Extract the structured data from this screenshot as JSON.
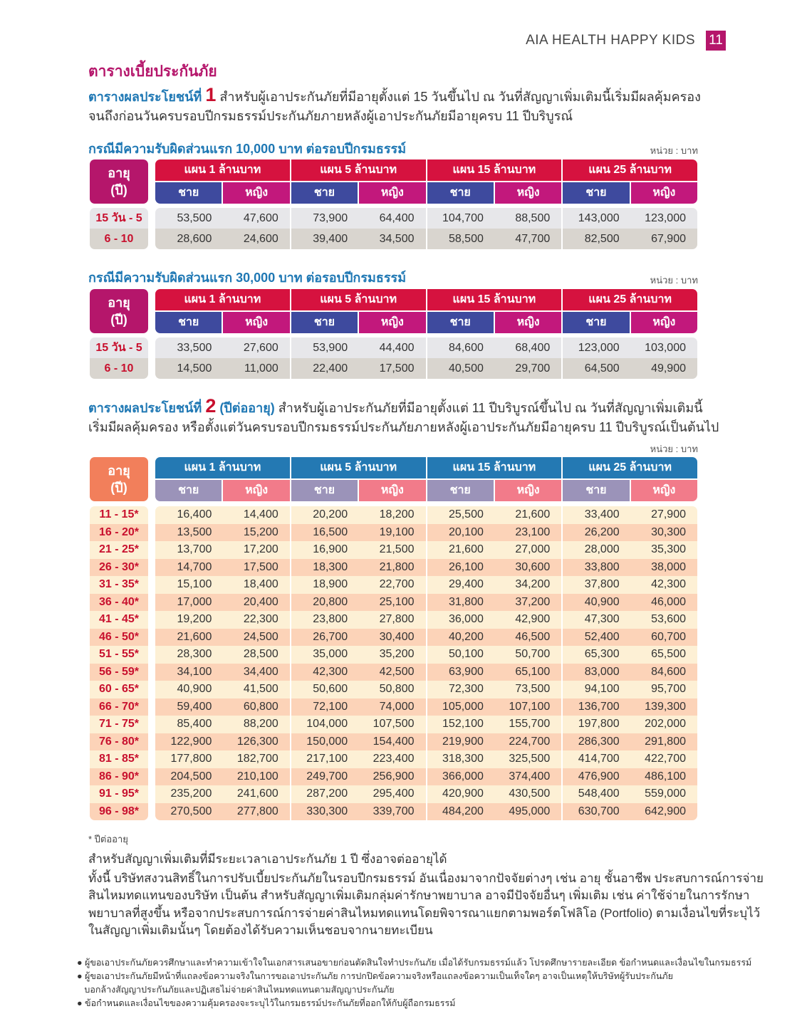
{
  "header": {
    "brand": "AIA HEALTH HAPPY KIDS",
    "page_number": "11"
  },
  "title": "ตารางเบี้ยประกันภัย",
  "benefit1": {
    "label": "ตารางผลประโยชน์ที่",
    "number": "1",
    "text_line1": "สำหรับผู้เอาประกันภัยที่มีอายุตั้งแต่ 15 วันขึ้นไป ณ วันที่สัญญาเพิ่มเติมนี้เริ่มมีผลคุ้มครอง",
    "text_line2": "จนถึงก่อนวันครบรอบปีกรมธรรม์ประกันภัยภายหลังผู้เอาประกันภัยมีอายุครบ 11 ปีบริบูรณ์"
  },
  "unit_label": "หน่วย : บาท",
  "age_header": [
    "อายุ",
    "(ปี)"
  ],
  "plans": [
    "แผน 1 ล้านบาท",
    "แผน 5 ล้านบาท",
    "แผน 15 ล้านบาท",
    "แผน 25 ล้านบาท"
  ],
  "genders": [
    "ชาย",
    "หญิง"
  ],
  "table1": {
    "caption": "กรณีมีความรับผิดส่วนแรก 10,000 บาท ต่อรอบปีกรมธรรม์",
    "rows": [
      {
        "age": "15 วัน - 5",
        "values": [
          "53,500",
          "47,600",
          "73,900",
          "64,400",
          "104,700",
          "88,500",
          "143,000",
          "123,000"
        ]
      },
      {
        "age": "6 - 10",
        "values": [
          "28,600",
          "24,600",
          "39,400",
          "34,500",
          "58,500",
          "47,700",
          "82,500",
          "67,900"
        ]
      }
    ]
  },
  "table2": {
    "caption": "กรณีมีความรับผิดส่วนแรก 30,000 บาท ต่อรอบปีกรมธรรม์",
    "rows": [
      {
        "age": "15 วัน - 5",
        "values": [
          "33,500",
          "27,600",
          "53,900",
          "44,400",
          "84,600",
          "68,400",
          "123,000",
          "103,000"
        ]
      },
      {
        "age": "6 - 10",
        "values": [
          "14,500",
          "11,000",
          "22,400",
          "17,500",
          "40,500",
          "29,700",
          "64,500",
          "49,900"
        ]
      }
    ]
  },
  "benefit2": {
    "label": "ตารางผลประโยชน์ที่",
    "number": "2",
    "sub": "(ปีต่ออายุ)",
    "text_line1": "สำหรับผู้เอาประกันภัยที่มีอายุตั้งแต่ 11 ปีบริบูรณ์ขึ้นไป ณ วันที่สัญญาเพิ่มเติมนี้",
    "text_line2": "เริ่มมีผลคุ้มครอง หรือตั้งแต่วันครบรอบปีกรมธรรม์ประกันภัยภายหลังผู้เอาประกันภัยมีอายุครบ 11 ปีบริบูรณ์เป็นต้นไป"
  },
  "table3": {
    "rows": [
      {
        "age": "11 - 15*",
        "values": [
          "16,400",
          "14,400",
          "20,200",
          "18,200",
          "25,500",
          "21,600",
          "33,400",
          "27,900"
        ]
      },
      {
        "age": "16 - 20*",
        "values": [
          "13,500",
          "15,200",
          "16,500",
          "19,100",
          "20,100",
          "23,100",
          "26,200",
          "30,300"
        ]
      },
      {
        "age": "21 - 25*",
        "values": [
          "13,700",
          "17,200",
          "16,900",
          "21,500",
          "21,600",
          "27,000",
          "28,000",
          "35,300"
        ]
      },
      {
        "age": "26 - 30*",
        "values": [
          "14,700",
          "17,500",
          "18,300",
          "21,800",
          "26,100",
          "30,600",
          "33,800",
          "38,000"
        ]
      },
      {
        "age": "31 - 35*",
        "values": [
          "15,100",
          "18,400",
          "18,900",
          "22,700",
          "29,400",
          "34,200",
          "37,800",
          "42,300"
        ]
      },
      {
        "age": "36 - 40*",
        "values": [
          "17,000",
          "20,400",
          "20,800",
          "25,100",
          "31,800",
          "37,200",
          "40,900",
          "46,000"
        ]
      },
      {
        "age": "41 - 45*",
        "values": [
          "19,200",
          "22,300",
          "23,800",
          "27,800",
          "36,000",
          "42,900",
          "47,300",
          "53,600"
        ]
      },
      {
        "age": "46 - 50*",
        "values": [
          "21,600",
          "24,500",
          "26,700",
          "30,400",
          "40,200",
          "46,500",
          "52,400",
          "60,700"
        ]
      },
      {
        "age": "51 - 55*",
        "values": [
          "28,300",
          "28,500",
          "35,000",
          "35,200",
          "50,100",
          "50,700",
          "65,300",
          "65,500"
        ]
      },
      {
        "age": "56 - 59*",
        "values": [
          "34,100",
          "34,400",
          "42,300",
          "42,500",
          "63,900",
          "65,100",
          "83,000",
          "84,600"
        ]
      },
      {
        "age": "60 - 65*",
        "values": [
          "40,900",
          "41,500",
          "50,600",
          "50,800",
          "72,300",
          "73,500",
          "94,100",
          "95,700"
        ]
      },
      {
        "age": "66 - 70*",
        "values": [
          "59,400",
          "60,800",
          "72,100",
          "74,000",
          "105,000",
          "107,100",
          "136,700",
          "139,300"
        ]
      },
      {
        "age": "71 - 75*",
        "values": [
          "85,400",
          "88,200",
          "104,000",
          "107,500",
          "152,100",
          "155,700",
          "197,800",
          "202,000"
        ]
      },
      {
        "age": "76 - 80*",
        "values": [
          "122,900",
          "126,300",
          "150,000",
          "154,400",
          "219,900",
          "224,700",
          "286,300",
          "291,800"
        ]
      },
      {
        "age": "81 - 85*",
        "values": [
          "177,800",
          "182,700",
          "217,100",
          "223,400",
          "318,300",
          "325,500",
          "414,700",
          "422,700"
        ]
      },
      {
        "age": "86 - 90*",
        "values": [
          "204,500",
          "210,100",
          "249,700",
          "256,900",
          "366,000",
          "374,400",
          "476,900",
          "486,100"
        ]
      },
      {
        "age": "91 - 95*",
        "values": [
          "235,200",
          "241,600",
          "287,200",
          "295,400",
          "420,900",
          "430,500",
          "548,400",
          "559,000"
        ]
      },
      {
        "age": "96 - 98*",
        "values": [
          "270,500",
          "277,800",
          "330,300",
          "339,700",
          "484,200",
          "495,000",
          "630,700",
          "642,900"
        ]
      }
    ]
  },
  "footnote": "* ปีต่ออายุ",
  "remarks": [
    "สำหรับสัญญาเพิ่มเติมที่มีระยะเวลาเอาประกันภัย 1 ปี  ซึ่งอาจต่ออายุได้",
    "ทั้งนี้ บริษัทสงวนสิทธิ์ในการปรับเบี้ยประกันภัยในรอบปีกรมธรรม์ อันเนื่องมาจากปัจจัยต่างๆ เช่น อายุ ชั้นอาชีพ ประสบการณ์การจ่าย",
    "สินไหมทดแทนของบริษัท เป็นต้น สำหรับสัญญาเพิ่มเติมกลุ่มค่ารักษาพยาบาล อาจมีปัจจัยอื่นๆ เพิ่มเติม เช่น ค่าใช้จ่ายในการรักษา",
    "พยาบาลที่สูงขึ้น หรือจากประสบการณ์การจ่ายค่าสินไหมทดแทนโดยพิจารณาแยกตามพอร์ตโฟลิโอ (Portfolio) ตามเงื่อนไขที่ระบุไว้",
    "ในสัญญาเพิ่มเติมนั้นๆ โดยต้องได้รับความเห็นชอบจากนายทะเบียน"
  ],
  "bullets": [
    "● ผู้ขอเอาประกันภัยควรศึกษาและทำความเข้าใจในเอกสารเสนอขายก่อนตัดสินใจทำประกันภัย เมื่อได้รับกรมธรรม์แล้ว โปรดศึกษารายละเอียด ข้อกำหนดและเงื่อนไขในกรมธรรม์",
    "● ผู้ขอเอาประกันภัยมีหน้าที่แถลงข้อความจริงในการขอเอาประกันภัย การปกปิดข้อความจริงหรือแถลงข้อความเป็นเท็จใดๆ อาจเป็นเหตุให้บริษัทผู้รับประกันภัย",
    "   บอกล้างสัญญาประกันภัยและปฏิเสธไม่จ่ายค่าสินไหมทดแทนตามสัญญาประกันภัย",
    "● ข้อกำหนดและเงื่อนไขของความคุ้มครองจะระบุไว้ในกรมธรรม์ประกันภัยที่ออกให้กับผู้ถือกรมธรรม์"
  ],
  "colors": {
    "brand": "#b5166b",
    "accent_blue": "#1f78b4",
    "plan_red": "#d6123f",
    "male_blue": "#3e4a9e",
    "female_magenta": "#c2187c",
    "renew_plan": "#2479b3",
    "renew_age": "#f27f5b",
    "renew_male": "#9b93b9",
    "renew_female": "#f27b8a"
  }
}
